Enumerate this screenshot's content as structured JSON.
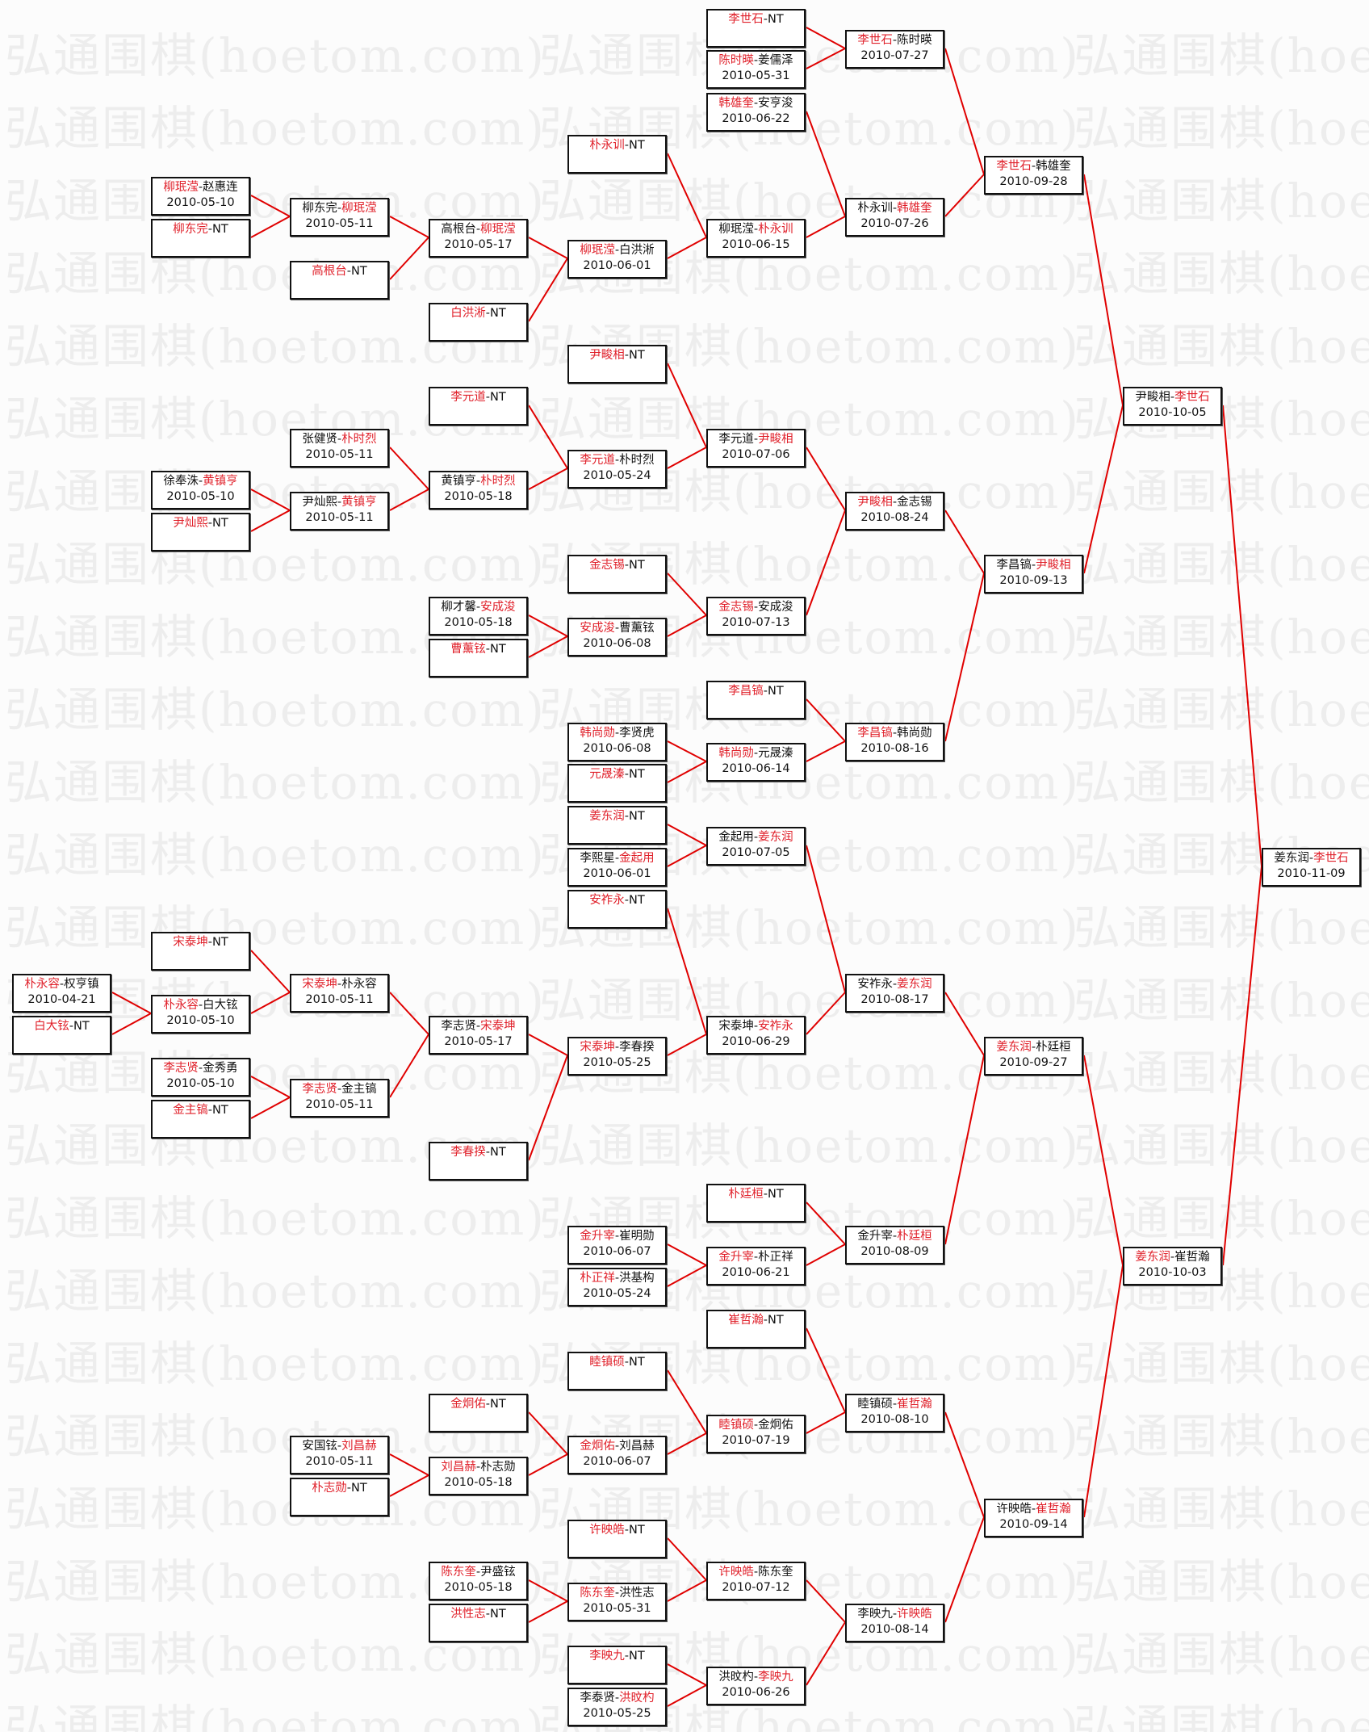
{
  "watermark": "弘通围棋(hoetom.com)",
  "nt_label": "NT",
  "colors": {
    "winner": "#e0202a",
    "line": "#e00000",
    "border": "#111111"
  },
  "rounds": [
    [
      {
        "p1": "朴永容",
        "p2": "权亨镇",
        "winner": 1,
        "date": "2010-04-21"
      },
      {
        "p1": "白大铉",
        "p2": "NT",
        "winner": 1,
        "date": ""
      }
    ],
    [
      {
        "p1": "柳珉滢",
        "p2": "赵惠连",
        "winner": 1,
        "date": "2010-05-10"
      },
      {
        "p1": "柳东完",
        "p2": "NT",
        "winner": 1,
        "date": ""
      },
      {
        "p1": "徐奉洙",
        "p2": "黄镇亨",
        "winner": 2,
        "date": "2010-05-10"
      },
      {
        "p1": "尹灿熙",
        "p2": "NT",
        "winner": 1,
        "date": ""
      },
      {
        "p1": "宋泰坤",
        "p2": "NT",
        "winner": 1,
        "date": ""
      },
      {
        "p1": "朴永容",
        "p2": "白大铉",
        "winner": 1,
        "date": "2010-05-10"
      },
      {
        "p1": "李志贤",
        "p2": "金秀勇",
        "winner": 1,
        "date": "2010-05-10"
      },
      {
        "p1": "金主镐",
        "p2": "NT",
        "winner": 1,
        "date": ""
      }
    ],
    [
      {
        "p1": "柳东完",
        "p2": "柳珉滢",
        "winner": 2,
        "date": "2010-05-11"
      },
      {
        "p1": "高根台",
        "p2": "NT",
        "winner": 1,
        "date": ""
      },
      {
        "p1": "张健贤",
        "p2": "朴时烈",
        "winner": 2,
        "date": "2010-05-11"
      },
      {
        "p1": "尹灿熙",
        "p2": "黄镇亨",
        "winner": 2,
        "date": "2010-05-11"
      },
      {
        "p1": "宋泰坤",
        "p2": "朴永容",
        "winner": 1,
        "date": "2010-05-11"
      },
      {
        "p1": "李志贤",
        "p2": "金主镐",
        "winner": 1,
        "date": "2010-05-11"
      },
      {
        "p1": "安国铉",
        "p2": "刘昌赫",
        "winner": 2,
        "date": "2010-05-11"
      },
      {
        "p1": "朴志勋",
        "p2": "NT",
        "winner": 1,
        "date": ""
      }
    ],
    [
      {
        "p1": "高根台",
        "p2": "柳珉滢",
        "winner": 2,
        "date": "2010-05-17"
      },
      {
        "p1": "白洪淅",
        "p2": "NT",
        "winner": 1,
        "date": ""
      },
      {
        "p1": "李元道",
        "p2": "NT",
        "winner": 1,
        "date": ""
      },
      {
        "p1": "黄镇亨",
        "p2": "朴时烈",
        "winner": 2,
        "date": "2010-05-18"
      },
      {
        "p1": "柳才馨",
        "p2": "安成浚",
        "winner": 2,
        "date": "2010-05-18"
      },
      {
        "p1": "曹薰铉",
        "p2": "NT",
        "winner": 1,
        "date": ""
      },
      {
        "p1": "李志贤",
        "p2": "宋泰坤",
        "winner": 2,
        "date": "2010-05-17"
      },
      {
        "p1": "李春揆",
        "p2": "NT",
        "winner": 1,
        "date": ""
      },
      {
        "p1": "金炯佑",
        "p2": "NT",
        "winner": 1,
        "date": ""
      },
      {
        "p1": "刘昌赫",
        "p2": "朴志勋",
        "winner": 1,
        "date": "2010-05-18"
      },
      {
        "p1": "陈东奎",
        "p2": "尹盛铉",
        "winner": 1,
        "date": "2010-05-18"
      },
      {
        "p1": "洪性志",
        "p2": "NT",
        "winner": 1,
        "date": ""
      }
    ],
    [
      {
        "p1": "朴永训",
        "p2": "NT",
        "winner": 1,
        "date": ""
      },
      {
        "p1": "柳珉滢",
        "p2": "白洪淅",
        "winner": 1,
        "date": "2010-06-01"
      },
      {
        "p1": "尹畯相",
        "p2": "NT",
        "winner": 1,
        "date": ""
      },
      {
        "p1": "李元道",
        "p2": "朴时烈",
        "winner": 1,
        "date": "2010-05-24"
      },
      {
        "p1": "金志锡",
        "p2": "NT",
        "winner": 1,
        "date": ""
      },
      {
        "p1": "安成浚",
        "p2": "曹薰铉",
        "winner": 1,
        "date": "2010-06-08"
      },
      {
        "p1": "韩尚勋",
        "p2": "李贤虎",
        "winner": 1,
        "date": "2010-06-08"
      },
      {
        "p1": "元晟溱",
        "p2": "NT",
        "winner": 1,
        "date": ""
      },
      {
        "p1": "姜东润",
        "p2": "NT",
        "winner": 1,
        "date": ""
      },
      {
        "p1": "李熙星",
        "p2": "金起用",
        "winner": 2,
        "date": "2010-06-01"
      },
      {
        "p1": "安祚永",
        "p2": "NT",
        "winner": 1,
        "date": ""
      },
      {
        "p1": "宋泰坤",
        "p2": "李春揆",
        "winner": 1,
        "date": "2010-05-25"
      },
      {
        "p1": "金升宰",
        "p2": "崔明勋",
        "winner": 1,
        "date": "2010-06-07"
      },
      {
        "p1": "朴正祥",
        "p2": "洪基构",
        "winner": 1,
        "date": "2010-05-24"
      },
      {
        "p1": "睦镇硕",
        "p2": "NT",
        "winner": 1,
        "date": ""
      },
      {
        "p1": "金炯佑",
        "p2": "刘昌赫",
        "winner": 1,
        "date": "2010-06-07"
      },
      {
        "p1": "许映皓",
        "p2": "NT",
        "winner": 1,
        "date": ""
      },
      {
        "p1": "陈东奎",
        "p2": "洪性志",
        "winner": 1,
        "date": "2010-05-31"
      },
      {
        "p1": "李映九",
        "p2": "NT",
        "winner": 1,
        "date": ""
      },
      {
        "p1": "李泰贤",
        "p2": "洪旼杓",
        "winner": 2,
        "date": "2010-05-25"
      }
    ],
    [
      {
        "p1": "李世石",
        "p2": "NT",
        "winner": 1,
        "date": ""
      },
      {
        "p1": "陈时暎",
        "p2": "姜儒泽",
        "winner": 1,
        "date": "2010-05-31"
      },
      {
        "p1": "韩雄奎",
        "p2": "安亨浚",
        "winner": 1,
        "date": "2010-06-22"
      },
      {
        "p1": "柳珉滢",
        "p2": "朴永训",
        "winner": 2,
        "date": "2010-06-15"
      },
      {
        "p1": "李元道",
        "p2": "尹畯相",
        "winner": 2,
        "date": "2010-07-06"
      },
      {
        "p1": "金志锡",
        "p2": "安成浚",
        "winner": 1,
        "date": "2010-07-13"
      },
      {
        "p1": "李昌镐",
        "p2": "NT",
        "winner": 1,
        "date": ""
      },
      {
        "p1": "韩尚勋",
        "p2": "元晟溱",
        "winner": 1,
        "date": "2010-06-14"
      },
      {
        "p1": "金起用",
        "p2": "姜东润",
        "winner": 2,
        "date": "2010-07-05"
      },
      {
        "p1": "宋泰坤",
        "p2": "安祚永",
        "winner": 2,
        "date": "2010-06-29"
      },
      {
        "p1": "朴廷桓",
        "p2": "NT",
        "winner": 1,
        "date": ""
      },
      {
        "p1": "金升宰",
        "p2": "朴正祥",
        "winner": 1,
        "date": "2010-06-21"
      },
      {
        "p1": "崔哲瀚",
        "p2": "NT",
        "winner": 1,
        "date": ""
      },
      {
        "p1": "睦镇硕",
        "p2": "金炯佑",
        "winner": 1,
        "date": "2010-07-19"
      },
      {
        "p1": "许映皓",
        "p2": "陈东奎",
        "winner": 1,
        "date": "2010-07-12"
      },
      {
        "p1": "洪旼杓",
        "p2": "李映九",
        "winner": 2,
        "date": "2010-06-26"
      }
    ],
    [
      {
        "p1": "李世石",
        "p2": "陈时暎",
        "winner": 1,
        "date": "2010-07-27"
      },
      {
        "p1": "朴永训",
        "p2": "韩雄奎",
        "winner": 2,
        "date": "2010-07-26"
      },
      {
        "p1": "尹畯相",
        "p2": "金志锡",
        "winner": 1,
        "date": "2010-08-24"
      },
      {
        "p1": "李昌镐",
        "p2": "韩尚勋",
        "winner": 1,
        "date": "2010-08-16"
      },
      {
        "p1": "安祚永",
        "p2": "姜东润",
        "winner": 2,
        "date": "2010-08-17"
      },
      {
        "p1": "金升宰",
        "p2": "朴廷桓",
        "winner": 2,
        "date": "2010-08-09"
      },
      {
        "p1": "睦镇硕",
        "p2": "崔哲瀚",
        "winner": 2,
        "date": "2010-08-10"
      },
      {
        "p1": "李映九",
        "p2": "许映皓",
        "winner": 2,
        "date": "2010-08-14"
      }
    ],
    [
      {
        "p1": "李世石",
        "p2": "韩雄奎",
        "winner": 1,
        "date": "2010-09-28"
      },
      {
        "p1": "李昌镐",
        "p2": "尹畯相",
        "winner": 2,
        "date": "2010-09-13"
      },
      {
        "p1": "姜东润",
        "p2": "朴廷桓",
        "winner": 1,
        "date": "2010-09-27"
      },
      {
        "p1": "许映皓",
        "p2": "崔哲瀚",
        "winner": 2,
        "date": "2010-09-14"
      }
    ],
    [
      {
        "p1": "尹畯相",
        "p2": "李世石",
        "winner": 2,
        "date": "2010-10-05"
      },
      {
        "p1": "姜东润",
        "p2": "崔哲瀚",
        "winner": 1,
        "date": "2010-10-03"
      }
    ],
    [
      {
        "p1": "姜东润",
        "p2": "李世石",
        "winner": 2,
        "date": "2010-11-09"
      }
    ]
  ]
}
